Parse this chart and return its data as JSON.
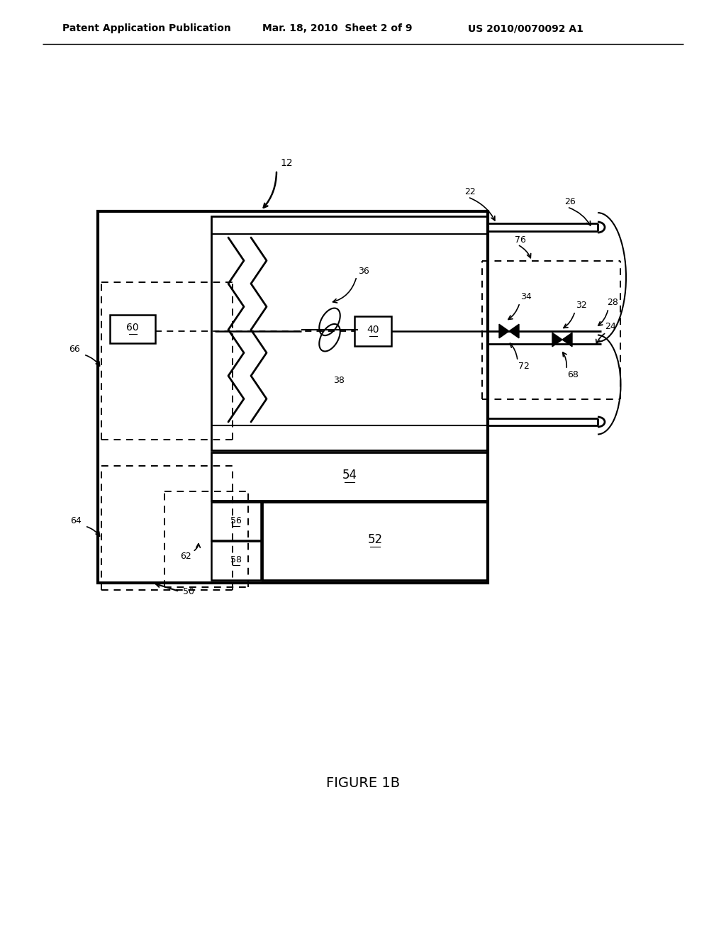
{
  "bg_color": "#ffffff",
  "header_left": "Patent Application Publication",
  "header_mid": "Mar. 18, 2010  Sheet 2 of 9",
  "header_right": "US 2010/0070092 A1",
  "figure_label": "FIGURE 1B",
  "line_color": "#000000"
}
